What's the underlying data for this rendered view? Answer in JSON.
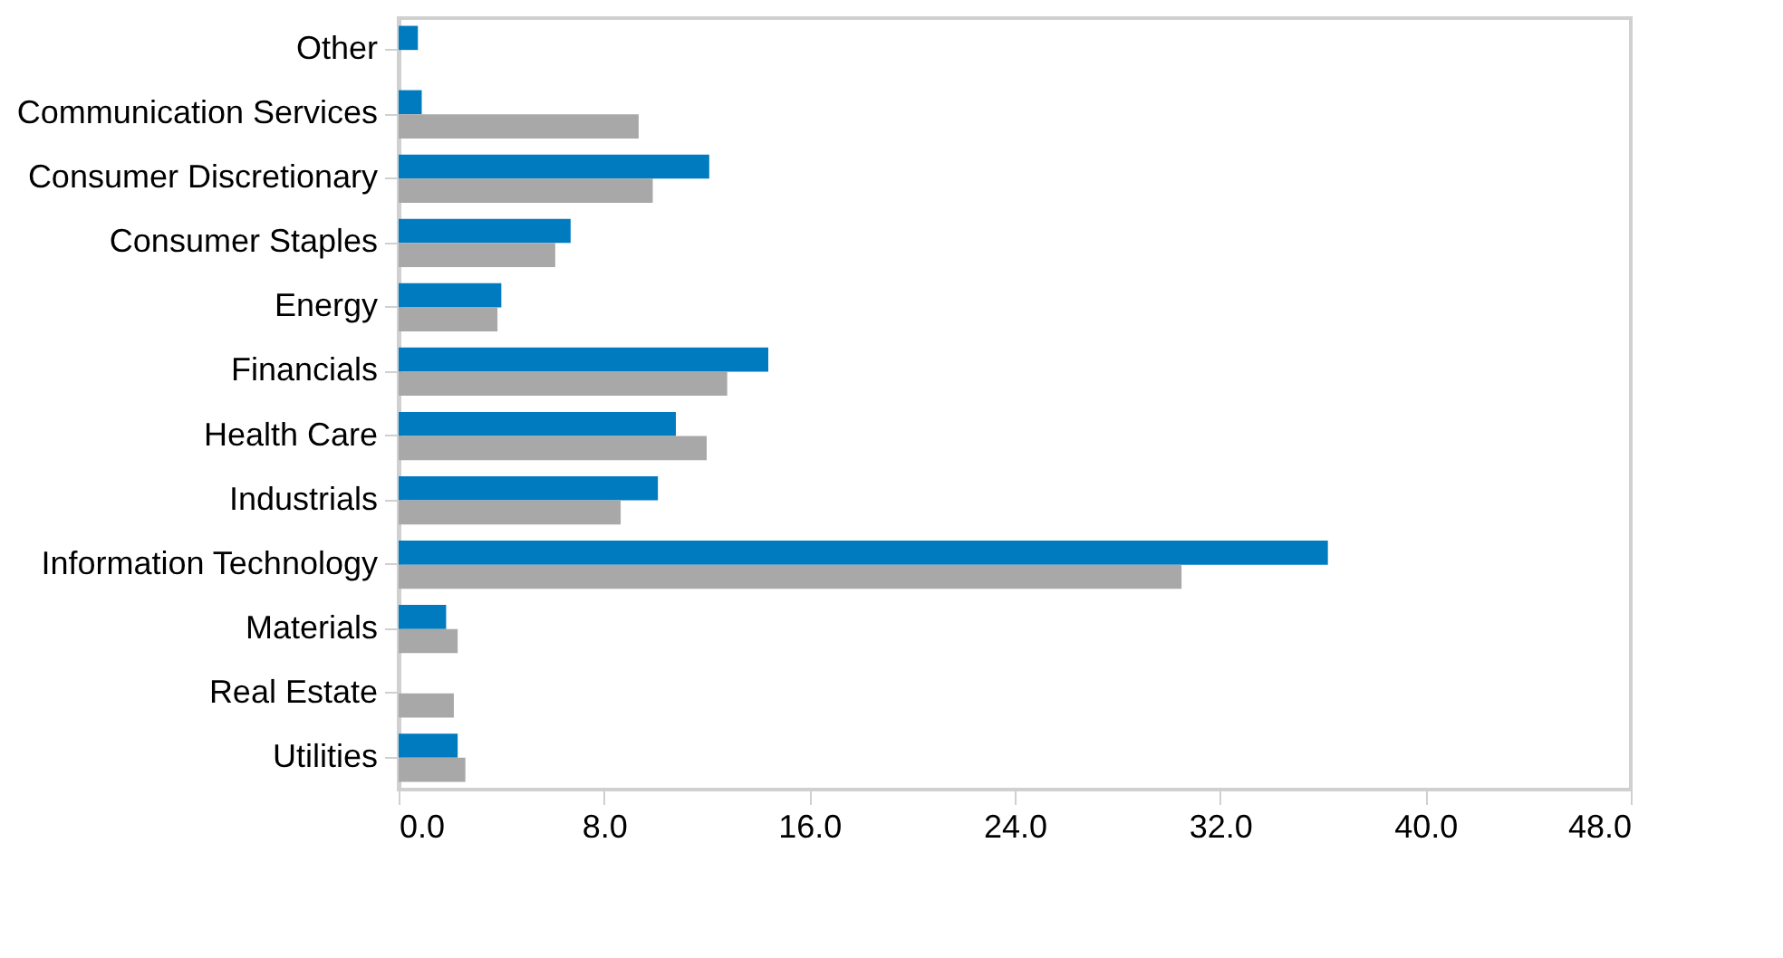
{
  "chart_data": {
    "type": "bar",
    "orientation": "horizontal",
    "categories": [
      "Other",
      "Communication Services",
      "Consumer Discretionary",
      "Consumer Staples",
      "Energy",
      "Financials",
      "Health Care",
      "Industrials",
      "Information Technology",
      "Materials",
      "Real Estate",
      "Utilities"
    ],
    "series": [
      {
        "color": "#007bc0",
        "values": [
          0.75,
          0.9,
          12.1,
          6.7,
          4.0,
          14.4,
          10.8,
          10.1,
          36.2,
          1.85,
          null,
          2.3
        ]
      },
      {
        "color": "#a8a8a8",
        "values": [
          null,
          9.35,
          9.9,
          6.1,
          3.85,
          12.8,
          12.0,
          8.65,
          30.5,
          2.3,
          2.15,
          2.6
        ]
      }
    ],
    "xlim": [
      0,
      48
    ],
    "xticks": [
      {
        "value": 0,
        "label": "0.0"
      },
      {
        "value": 8,
        "label": "8.0"
      },
      {
        "value": 16,
        "label": "16.0"
      },
      {
        "value": 24,
        "label": "24.0"
      },
      {
        "value": 32,
        "label": "32.0"
      },
      {
        "value": 40,
        "label": "40.0"
      },
      {
        "value": 48,
        "label": "48.0"
      }
    ],
    "grid": false,
    "legend": false
  }
}
